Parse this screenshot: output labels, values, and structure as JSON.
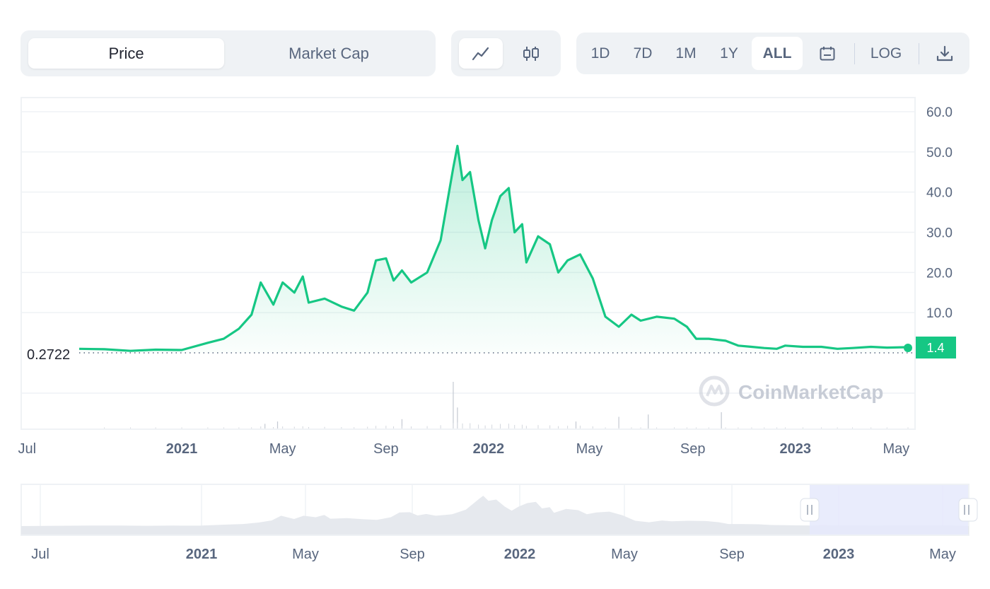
{
  "tabs": [
    {
      "label": "Price",
      "active": true
    },
    {
      "label": "Market Cap",
      "active": false
    }
  ],
  "chart_type_icons": [
    "line-chart-icon",
    "candlestick-icon"
  ],
  "ranges": [
    {
      "label": "1D",
      "active": false
    },
    {
      "label": "7D",
      "active": false
    },
    {
      "label": "1M",
      "active": false
    },
    {
      "label": "1Y",
      "active": false
    },
    {
      "label": "ALL",
      "active": true
    }
  ],
  "calendar_icon": "calendar-icon",
  "log_label": "LOG",
  "download_icon": "download-icon",
  "watermark": "CoinMarketCap",
  "colors": {
    "line": "#16c784",
    "grid": "#eff2f5",
    "label": "#58667e",
    "navigator_fill": "#e6e9ee",
    "selection": "#e5e9fb"
  },
  "chart_data": {
    "type": "area",
    "title": "",
    "xlabel": "",
    "ylabel": "",
    "ylim": [
      0,
      60
    ],
    "y_ticks": [
      "60.0",
      "50.0",
      "40.0",
      "30.0",
      "20.0",
      "10.0"
    ],
    "x_ticks": [
      {
        "label": "Jul",
        "date": "2020-07-01",
        "bold": false
      },
      {
        "label": "2021",
        "date": "2021-01-01",
        "bold": true
      },
      {
        "label": "May",
        "date": "2021-05-01",
        "bold": false
      },
      {
        "label": "Sep",
        "date": "2021-09-01",
        "bold": false
      },
      {
        "label": "2022",
        "date": "2022-01-01",
        "bold": true
      },
      {
        "label": "May",
        "date": "2022-05-01",
        "bold": false
      },
      {
        "label": "Sep",
        "date": "2022-09-01",
        "bold": false
      },
      {
        "label": "2023",
        "date": "2023-01-01",
        "bold": true
      },
      {
        "label": "May",
        "date": "2023-05-01",
        "bold": false
      }
    ],
    "start_price_label": "0.2722",
    "current_price_label": "1.4",
    "series": [
      {
        "points": [
          [
            "2020-09-01",
            1.0
          ],
          [
            "2020-10-01",
            0.9
          ],
          [
            "2020-11-01",
            0.5
          ],
          [
            "2020-12-01",
            0.8
          ],
          [
            "2021-01-01",
            0.7
          ],
          [
            "2021-02-01",
            2.5
          ],
          [
            "2021-02-20",
            3.5
          ],
          [
            "2021-03-10",
            6.0
          ],
          [
            "2021-03-25",
            9.5
          ],
          [
            "2021-04-05",
            17.5
          ],
          [
            "2021-04-20",
            12.0
          ],
          [
            "2021-05-01",
            17.5
          ],
          [
            "2021-05-15",
            15.0
          ],
          [
            "2021-05-25",
            19.0
          ],
          [
            "2021-06-01",
            12.5
          ],
          [
            "2021-06-20",
            13.5
          ],
          [
            "2021-07-10",
            11.5
          ],
          [
            "2021-07-25",
            10.5
          ],
          [
            "2021-08-10",
            15.0
          ],
          [
            "2021-08-20",
            23.0
          ],
          [
            "2021-09-01",
            23.5
          ],
          [
            "2021-09-10",
            18.0
          ],
          [
            "2021-09-20",
            20.5
          ],
          [
            "2021-10-01",
            17.5
          ],
          [
            "2021-10-20",
            20.0
          ],
          [
            "2021-11-05",
            28.0
          ],
          [
            "2021-11-20",
            46.0
          ],
          [
            "2021-11-25",
            51.5
          ],
          [
            "2021-12-01",
            43.0
          ],
          [
            "2021-12-10",
            45.0
          ],
          [
            "2021-12-20",
            33.0
          ],
          [
            "2021-12-28",
            26.0
          ],
          [
            "2022-01-05",
            33.0
          ],
          [
            "2022-01-15",
            39.0
          ],
          [
            "2022-01-25",
            41.0
          ],
          [
            "2022-02-01",
            30.0
          ],
          [
            "2022-02-10",
            32.0
          ],
          [
            "2022-02-15",
            22.5
          ],
          [
            "2022-03-01",
            29.0
          ],
          [
            "2022-03-15",
            27.0
          ],
          [
            "2022-03-25",
            20.0
          ],
          [
            "2022-04-05",
            23.0
          ],
          [
            "2022-04-20",
            24.5
          ],
          [
            "2022-05-05",
            18.5
          ],
          [
            "2022-05-20",
            9.0
          ],
          [
            "2022-06-05",
            6.5
          ],
          [
            "2022-06-20",
            9.5
          ],
          [
            "2022-07-01",
            8.0
          ],
          [
            "2022-07-20",
            9.0
          ],
          [
            "2022-08-10",
            8.5
          ],
          [
            "2022-08-25",
            6.5
          ],
          [
            "2022-09-05",
            3.5
          ],
          [
            "2022-09-20",
            3.5
          ],
          [
            "2022-10-10",
            3.0
          ],
          [
            "2022-10-25",
            1.8
          ],
          [
            "2022-11-10",
            1.5
          ],
          [
            "2022-11-25",
            1.2
          ],
          [
            "2022-12-10",
            1.0
          ],
          [
            "2022-12-20",
            1.8
          ],
          [
            "2023-01-10",
            1.5
          ],
          [
            "2023-02-01",
            1.5
          ],
          [
            "2023-02-20",
            1.0
          ],
          [
            "2023-03-10",
            1.2
          ],
          [
            "2023-04-01",
            1.5
          ],
          [
            "2023-04-20",
            1.3
          ],
          [
            "2023-05-15",
            1.4
          ]
        ]
      }
    ],
    "volume_spikes": [
      [
        "2021-04-10",
        0.1
      ],
      [
        "2021-04-25",
        0.15
      ],
      [
        "2021-09-20",
        0.2
      ],
      [
        "2021-11-20",
        1.0
      ],
      [
        "2021-11-25",
        0.45
      ],
      [
        "2022-04-15",
        0.15
      ],
      [
        "2022-06-05",
        0.25
      ],
      [
        "2022-07-10",
        0.3
      ],
      [
        "2022-10-05",
        0.35
      ]
    ]
  },
  "navigator": {
    "x_ticks": [
      {
        "label": "Jul",
        "bold": false
      },
      {
        "label": "2021",
        "bold": true
      },
      {
        "label": "May",
        "bold": false
      },
      {
        "label": "Sep",
        "bold": false
      },
      {
        "label": "2022",
        "bold": true
      },
      {
        "label": "May",
        "bold": false
      },
      {
        "label": "Sep",
        "bold": false
      },
      {
        "label": "2023",
        "bold": true
      },
      {
        "label": "May",
        "bold": false
      }
    ],
    "handle_left_icon": "drag-handle-icon",
    "handle_right_icon": "drag-handle-icon"
  }
}
